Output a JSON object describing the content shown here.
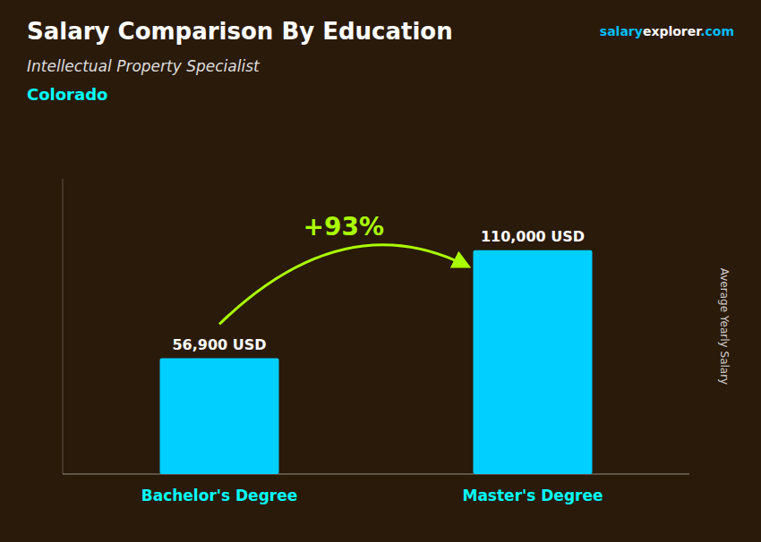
{
  "chart_data": {
    "type": "bar",
    "title": "Salary Comparison By Education",
    "subtitle": "Intellectual Property Specialist",
    "y_label": "Average Yearly Salary",
    "categories": [
      "Bachelor's Degree",
      "Master's Degree"
    ],
    "values": [
      56900,
      110000
    ],
    "value_labels": [
      "56,900 USD",
      "110,000 USD"
    ],
    "color": "#00CFFF",
    "ylim": [
      0,
      145000
    ],
    "tick_labels": "x",
    "data_labels": true,
    "annotations": [
      {
        "text": "Colorado",
        "color": "#00FFFF"
      },
      {
        "text": "+93%",
        "color": "#AAFF00"
      },
      {
        "text": "salary",
        "color": "#00BFFF"
      },
      {
        "text": "explorer",
        "color": "#ffffff"
      },
      {
        "text": ".com",
        "color": "#00BFFF"
      }
    ]
  }
}
